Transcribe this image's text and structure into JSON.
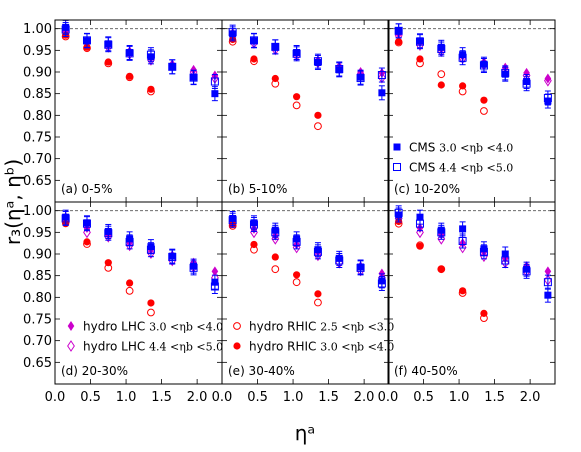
{
  "chart_data": {
    "type": "scatter",
    "ylabel": "r₃(ηᵃ, ηᵇ)",
    "xlabel": "ηᵃ",
    "xlim": [
      0.0,
      2.35
    ],
    "ylim": [
      0.6,
      1.02
    ],
    "x_ticks": [
      "0.0",
      "0.5",
      "1.0",
      "1.5",
      "2.0"
    ],
    "y_ticks": [
      "0.65",
      "0.70",
      "0.75",
      "0.80",
      "0.85",
      "0.90",
      "0.95",
      "1.00"
    ],
    "reference_line": 1.0,
    "grid": false,
    "colors": {
      "cms": "#0000ff",
      "lhc": "#cc00cc",
      "rhic": "#ff0000"
    },
    "x": [
      0.15,
      0.45,
      0.75,
      1.05,
      1.35,
      1.65,
      1.95,
      2.25
    ],
    "x_rhic": [
      0.15,
      0.45,
      0.75,
      1.05,
      1.35
    ],
    "legend_upper": {
      "cms1": {
        "prefix": "CMS",
        "range": "3.0 <ηb <4.0"
      },
      "cms2": {
        "prefix": "CMS",
        "range": "4.4 <ηb <5.0"
      }
    },
    "legend_lower_left": {
      "lhc1": {
        "prefix": "hydro LHC",
        "range": "3.0 <ηb <4.0"
      },
      "lhc2": {
        "prefix": "hydro LHC",
        "range": "4.4 <ηb <5.0"
      }
    },
    "legend_lower_mid": {
      "rhic1": {
        "prefix": "hydro RHIC",
        "range": "2.5 <ηb <3.0"
      },
      "rhic2": {
        "prefix": "hydro RHIC",
        "range": "3.0 <ηb <4.0"
      }
    },
    "panels": [
      {
        "label": "(a) 0-5%",
        "cms1": [
          1.003,
          0.972,
          0.965,
          0.945,
          0.935,
          0.912,
          0.888,
          0.85
        ],
        "cms2": [
          0.998,
          0.973,
          0.963,
          0.943,
          0.94,
          0.912,
          0.887,
          0.878
        ],
        "lhc1": [
          0.995,
          0.972,
          0.962,
          0.948,
          0.933,
          0.918,
          0.905,
          0.892
        ],
        "lhc2": [
          0.992,
          0.968,
          0.958,
          0.942,
          0.928,
          0.914,
          0.9,
          0.886
        ],
        "rhic1": [
          0.982,
          0.955,
          0.92,
          0.888,
          0.855
        ],
        "rhic2": [
          0.985,
          0.957,
          0.923,
          0.89,
          0.86
        ]
      },
      {
        "label": "(b) 5-10%",
        "cms1": [
          0.988,
          0.972,
          0.958,
          0.945,
          0.922,
          0.905,
          0.888,
          0.852
        ],
        "cms2": [
          0.992,
          0.973,
          0.958,
          0.942,
          0.925,
          0.907,
          0.886,
          0.893
        ],
        "lhc1": [
          0.99,
          0.972,
          0.957,
          0.943,
          0.927,
          0.913,
          0.9,
          0.898
        ],
        "lhc2": [
          0.986,
          0.967,
          0.952,
          0.938,
          0.922,
          0.908,
          0.895,
          0.887
        ],
        "rhic1": [
          0.97,
          0.925,
          0.873,
          0.823,
          0.775
        ],
        "rhic2": [
          0.975,
          0.93,
          0.885,
          0.843,
          0.8
        ]
      },
      {
        "label": "(c) 10-20%",
        "cms1": [
          0.995,
          0.972,
          0.957,
          0.94,
          0.918,
          0.895,
          0.878,
          0.833
        ],
        "cms2": [
          0.995,
          0.97,
          0.953,
          0.933,
          0.915,
          0.898,
          0.873,
          0.84
        ],
        "lhc1": [
          0.988,
          0.968,
          0.953,
          0.937,
          0.923,
          0.91,
          0.898,
          0.885
        ],
        "lhc2": [
          0.984,
          0.962,
          0.948,
          0.932,
          0.917,
          0.904,
          0.892,
          0.88
        ],
        "rhic1": [
          0.968,
          0.92,
          0.895,
          0.855,
          0.81
        ],
        "rhic2": [
          0.97,
          0.93,
          0.87,
          0.868,
          0.835
        ]
      },
      {
        "label": "(d) 20-30%",
        "cms1": [
          0.985,
          0.972,
          0.952,
          0.935,
          0.917,
          0.895,
          0.872,
          0.835
        ],
        "cms2": [
          0.982,
          0.97,
          0.948,
          0.928,
          0.91,
          0.893,
          0.868,
          0.825
        ],
        "lhc1": [
          0.985,
          0.96,
          0.945,
          0.927,
          0.91,
          0.897,
          0.88,
          0.86
        ],
        "lhc2": [
          0.978,
          0.95,
          0.94,
          0.92,
          0.902,
          0.885,
          0.87,
          0.845
        ],
        "rhic1": [
          0.975,
          0.923,
          0.868,
          0.815,
          0.765
        ],
        "rhic2": [
          0.97,
          0.928,
          0.88,
          0.833,
          0.787
        ]
      },
      {
        "label": "(e) 30-40%",
        "cms1": [
          0.982,
          0.972,
          0.955,
          0.935,
          0.91,
          0.89,
          0.87,
          0.838
        ],
        "cms2": [
          0.978,
          0.968,
          0.95,
          0.928,
          0.905,
          0.885,
          0.868,
          0.832
        ],
        "lhc1": [
          0.98,
          0.958,
          0.942,
          0.922,
          0.905,
          0.89,
          0.872,
          0.855
        ],
        "lhc2": [
          0.975,
          0.95,
          0.935,
          0.915,
          0.897,
          0.88,
          0.862,
          0.845
        ],
        "rhic1": [
          0.965,
          0.91,
          0.865,
          0.835,
          0.788
        ],
        "rhic2": [
          0.968,
          0.922,
          0.893,
          0.852,
          0.808
        ]
      },
      {
        "label": "(f) 40-50%",
        "cms1": [
          0.99,
          0.985,
          0.955,
          0.958,
          0.912,
          0.9,
          0.865,
          0.805
        ],
        "cms2": [
          0.995,
          0.97,
          0.95,
          0.93,
          0.905,
          0.885,
          0.86,
          0.835
        ],
        "lhc1": [
          0.988,
          0.96,
          0.945,
          0.925,
          0.905,
          0.89,
          0.872,
          0.86
        ],
        "lhc2": [
          0.982,
          0.95,
          0.935,
          0.915,
          0.895,
          0.88,
          0.86,
          0.84
        ],
        "rhic1": [
          0.97,
          0.92,
          0.865,
          0.81,
          0.752
        ],
        "rhic2": [
          0.975,
          0.918,
          0.865,
          0.815,
          0.763
        ]
      }
    ]
  }
}
